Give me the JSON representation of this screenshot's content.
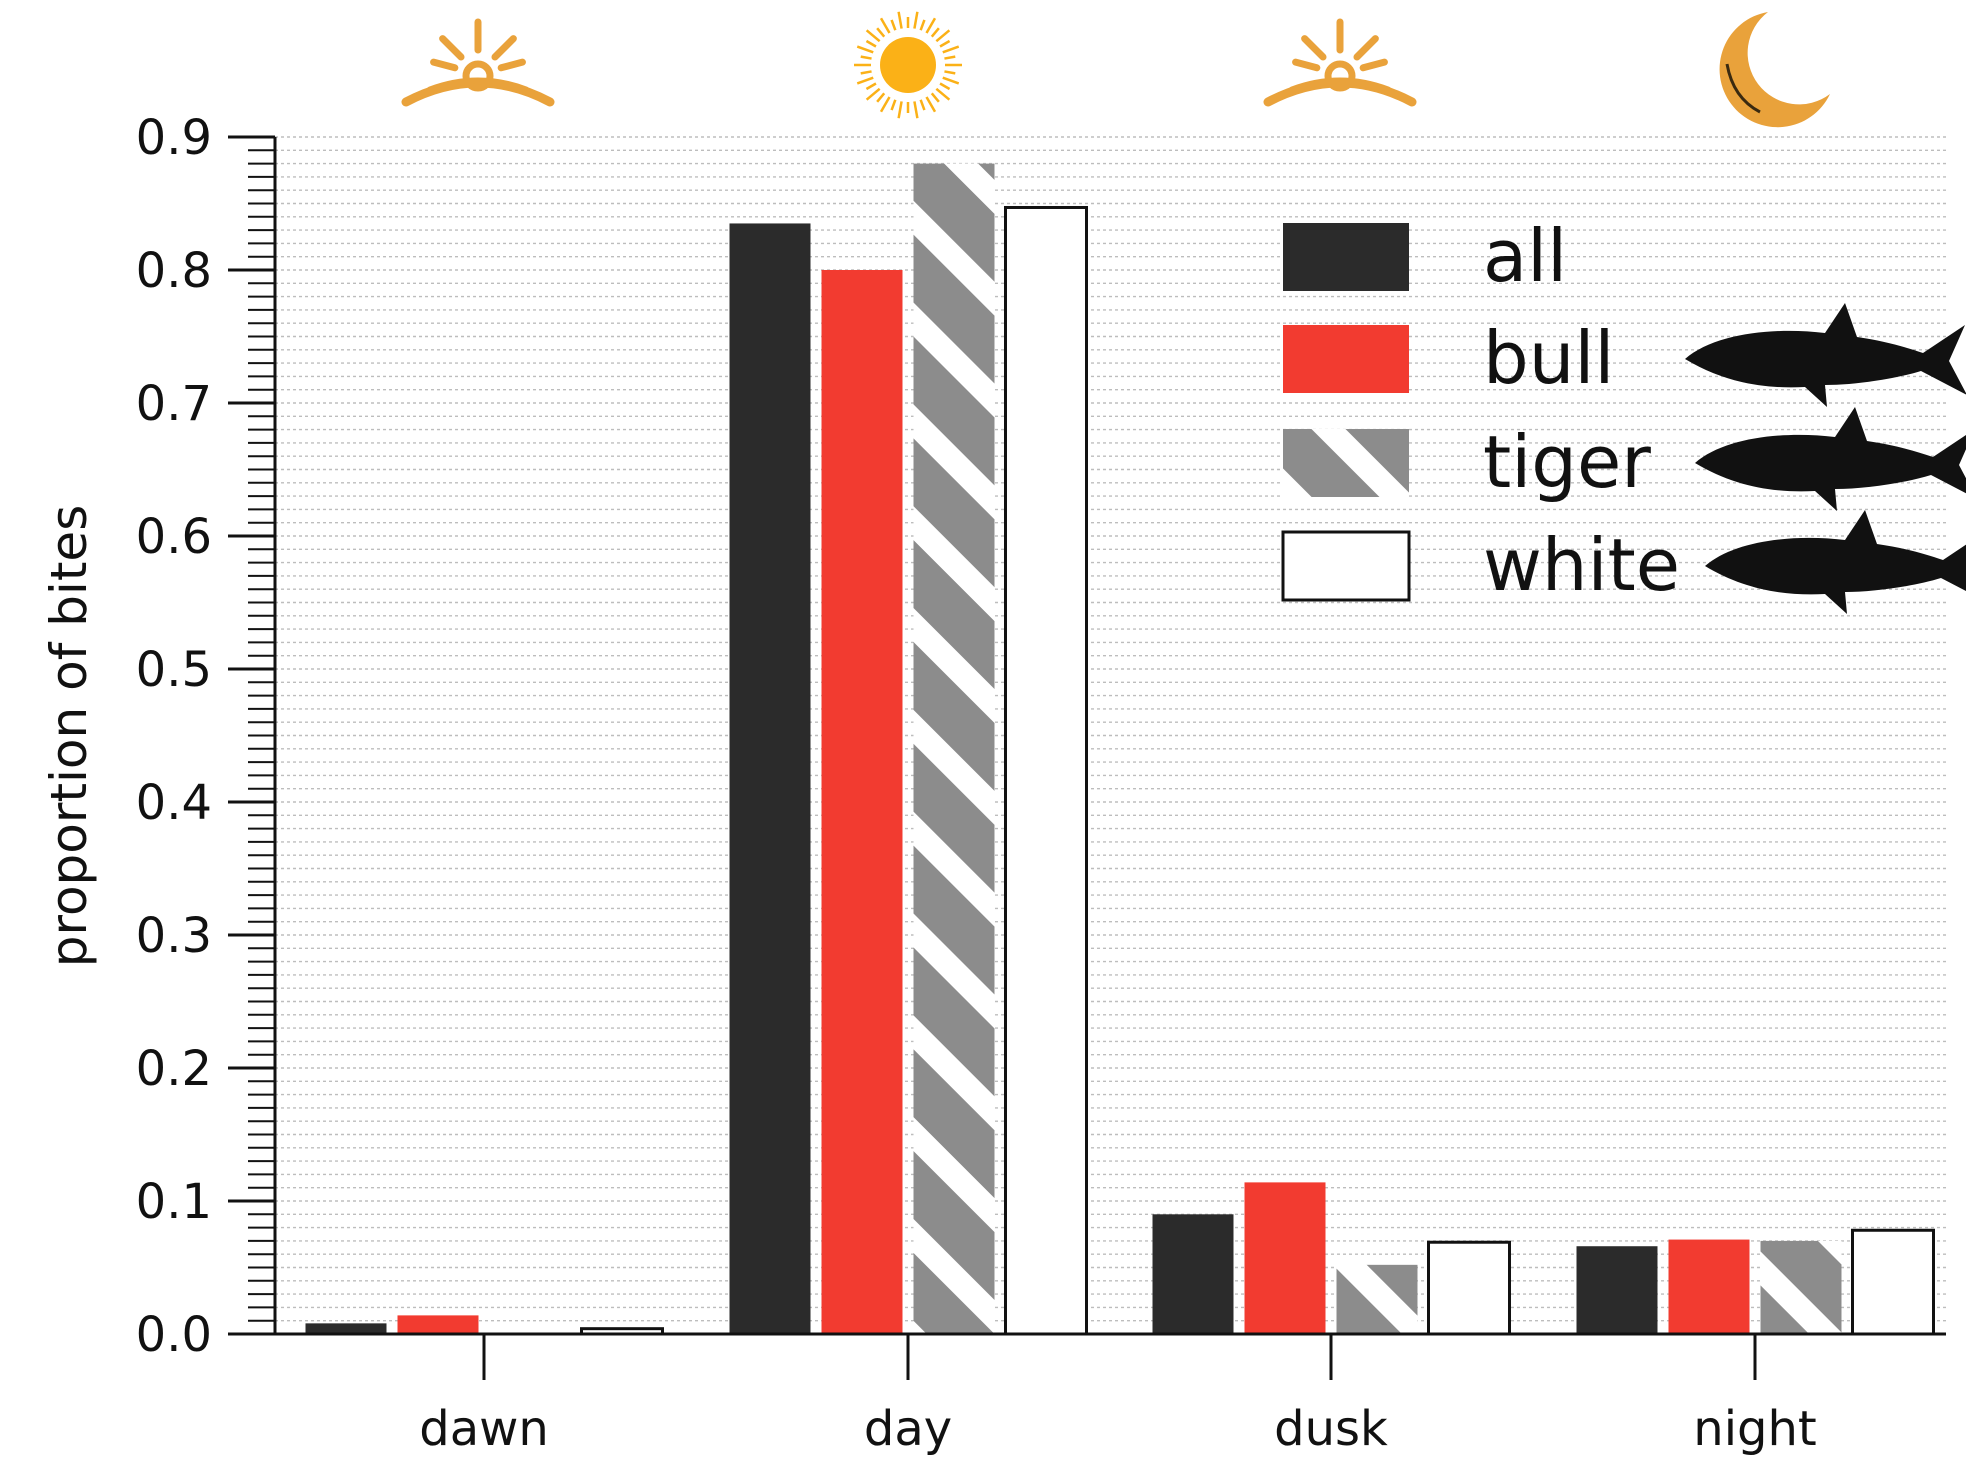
{
  "chart_data": {
    "type": "bar",
    "title": "",
    "xlabel": "",
    "ylabel": "proportion of bites",
    "ylim": [
      0,
      0.9
    ],
    "yticks": [
      "0.0",
      "0.1",
      "0.2",
      "0.3",
      "0.4",
      "0.5",
      "0.6",
      "0.7",
      "0.8",
      "0.9"
    ],
    "categories": [
      "dawn",
      "day",
      "dusk",
      "night"
    ],
    "category_icons": [
      "sunrise-icon",
      "sun-icon",
      "sunset-icon",
      "moon-icon"
    ],
    "series": [
      {
        "name": "all",
        "values": [
          0.008,
          0.835,
          0.09,
          0.066
        ],
        "fill": "#2b2b2b",
        "pattern": "solid",
        "legend_icon": ""
      },
      {
        "name": "bull",
        "values": [
          0.014,
          0.8,
          0.114,
          0.071
        ],
        "fill": "#f23b30",
        "pattern": "solid",
        "legend_icon": "bull-shark-icon"
      },
      {
        "name": "tiger",
        "values": [
          0.0,
          0.88,
          0.052,
          0.07
        ],
        "fill": "#8c8c8c",
        "pattern": "diagonal-stripes",
        "legend_icon": "tiger-shark-icon"
      },
      {
        "name": "white",
        "values": [
          0.004,
          0.847,
          0.069,
          0.078
        ],
        "fill": "#ffffff",
        "pattern": "outline",
        "legend_icon": "white-shark-icon"
      }
    ],
    "grid": true,
    "legend_position": "top-right",
    "colors": {
      "icon": "#e9a23b",
      "sun": "#fbb117"
    }
  }
}
